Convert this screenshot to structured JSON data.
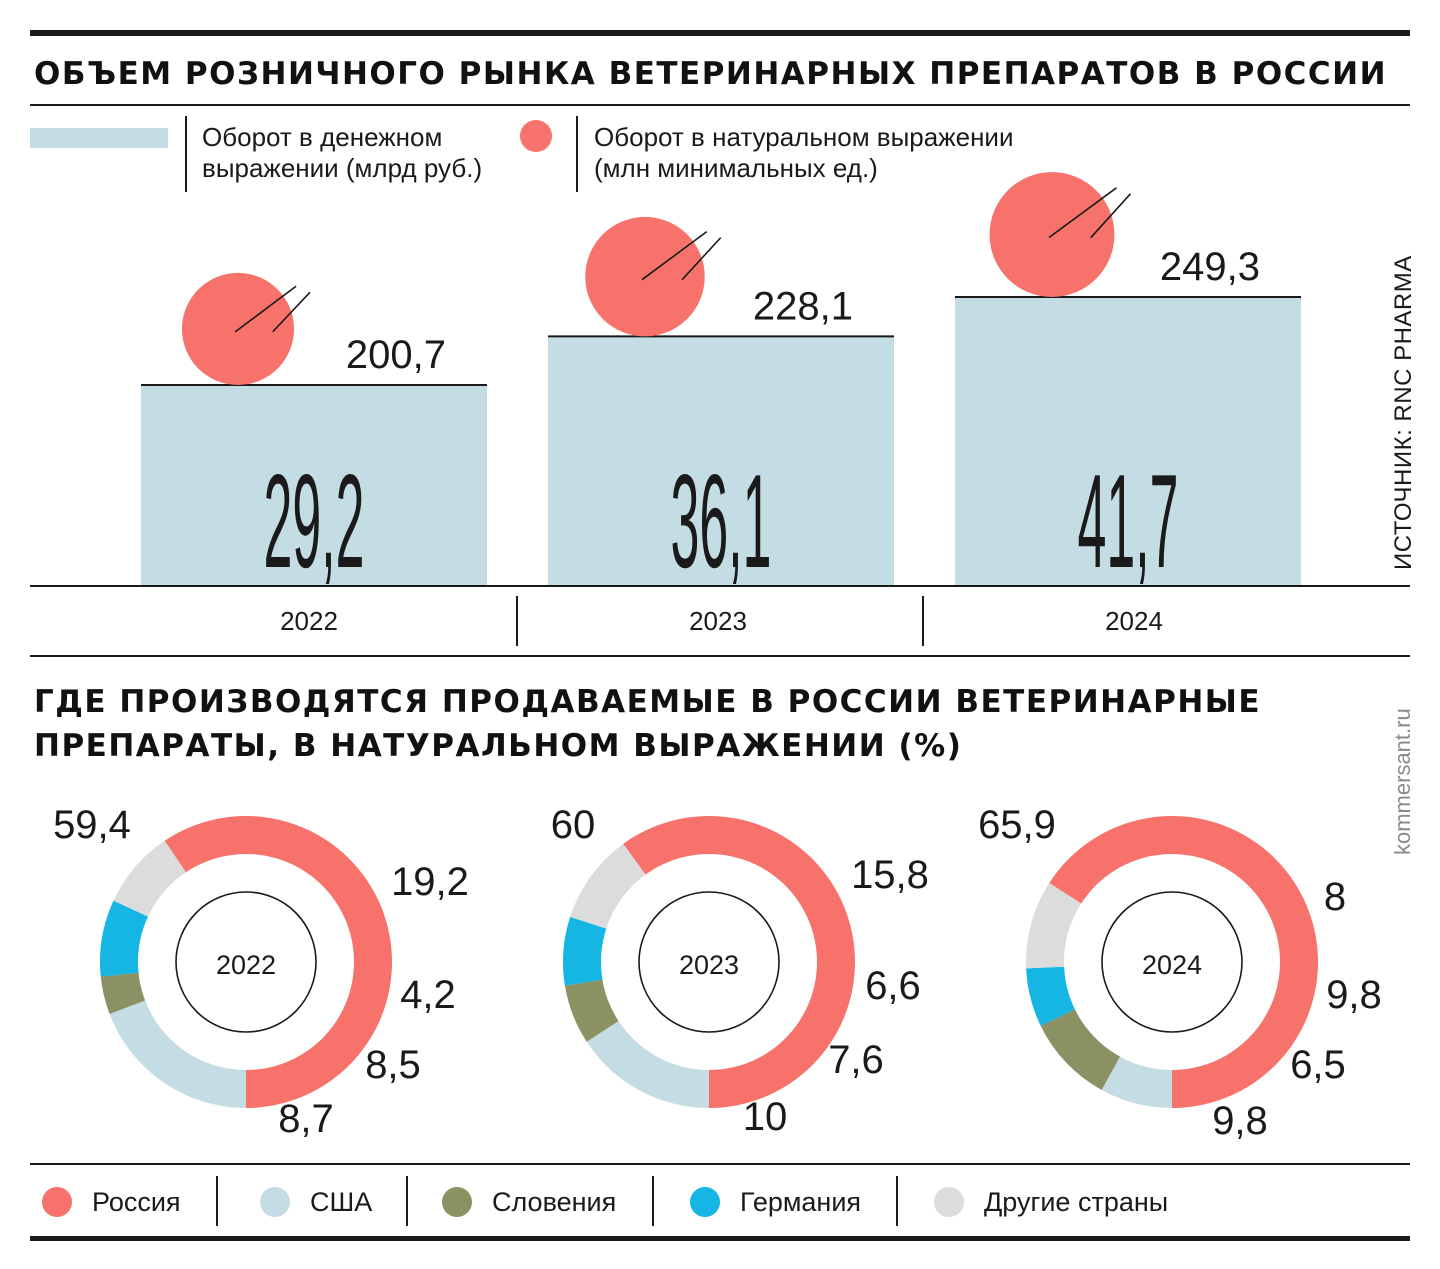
{
  "top_title": "ОБЪЕМ РОЗНИЧНОГО РЫНКА ВЕТЕРИНАРНЫХ ПРЕПАРАТОВ В РОССИИ",
  "legend": {
    "money_line1": "Оборот в денежном",
    "money_line2": "выражении (млрд руб.)",
    "units_line1": "Оборот в натуральном выражении",
    "units_line2": "(млн минимальных ед.)"
  },
  "source": "ИСТОЧНИК: RNC PHARMA",
  "credit": "kommersant.ru",
  "donut_title_line1": "ГДЕ ПРОИЗВОДЯТСЯ ПРОДАВАЕМЫЕ В РОССИИ ВЕТЕРИНАРНЫЕ",
  "donut_title_line2": "ПРЕПАРАТЫ, В НАТУРАЛЬНОМ ВЫРАЖЕНИИ (%)",
  "colors": {
    "bar": "#c4dce3",
    "circle": "#f7726a",
    "russia": "#f7726a",
    "usa": "#c4dce3",
    "slovenia": "#8c9163",
    "germany": "#15b5e4",
    "other": "#dcdcdc"
  },
  "bottom_legend": [
    {
      "label": "Россия",
      "color": "#f7726a"
    },
    {
      "label": "США",
      "color": "#c4dce3"
    },
    {
      "label": "Словения",
      "color": "#8c9163"
    },
    {
      "label": "Германия",
      "color": "#15b5e4"
    },
    {
      "label": "Другие страны",
      "color": "#dcdcdc"
    }
  ],
  "chart_data": [
    {
      "type": "bar",
      "title": "ОБЪЕМ РОЗНИЧНОГО РЫНКА ВЕТЕРИНАРНЫХ ПРЕПАРАТОВ В РОССИИ",
      "categories": [
        "2022",
        "2023",
        "2024"
      ],
      "series": [
        {
          "name": "Оборот в денежном выражении (млрд руб.)",
          "values": [
            29.2,
            36.1,
            41.7
          ],
          "labels": [
            "29,2",
            "36,1",
            "41,7"
          ]
        },
        {
          "name": "Оборот в натуральном выражении (млн минимальных ед.)",
          "values": [
            200.7,
            228.1,
            249.3
          ],
          "labels": [
            "200,7",
            "228,1",
            "249,3"
          ]
        }
      ]
    },
    {
      "type": "pie",
      "title": "ГДЕ ПРОИЗВОДЯТСЯ ПРОДАВАЕМЫЕ В РОССИИ ВЕТЕРИНАРНЫЕ ПРЕПАРАТЫ, В НАТУРАЛЬНОМ ВЫРАЖЕНИИ (%)",
      "categories": [
        "Россия",
        "США",
        "Словения",
        "Германия",
        "Другие страны"
      ],
      "charts": [
        {
          "year": "2022",
          "values": [
            59.4,
            19.2,
            4.2,
            8.5,
            8.7
          ],
          "labels": [
            "59,4",
            "19,2",
            "4,2",
            "8,5",
            "8,7"
          ]
        },
        {
          "year": "2023",
          "values": [
            60,
            15.8,
            6.6,
            7.6,
            10
          ],
          "labels": [
            "60",
            "15,8",
            "6,6",
            "7,6",
            "10"
          ]
        },
        {
          "year": "2024",
          "values": [
            65.9,
            8,
            9.8,
            6.5,
            9.8
          ],
          "labels": [
            "65,9",
            "8",
            "9,8",
            "6,5",
            "9,8"
          ]
        }
      ]
    }
  ]
}
